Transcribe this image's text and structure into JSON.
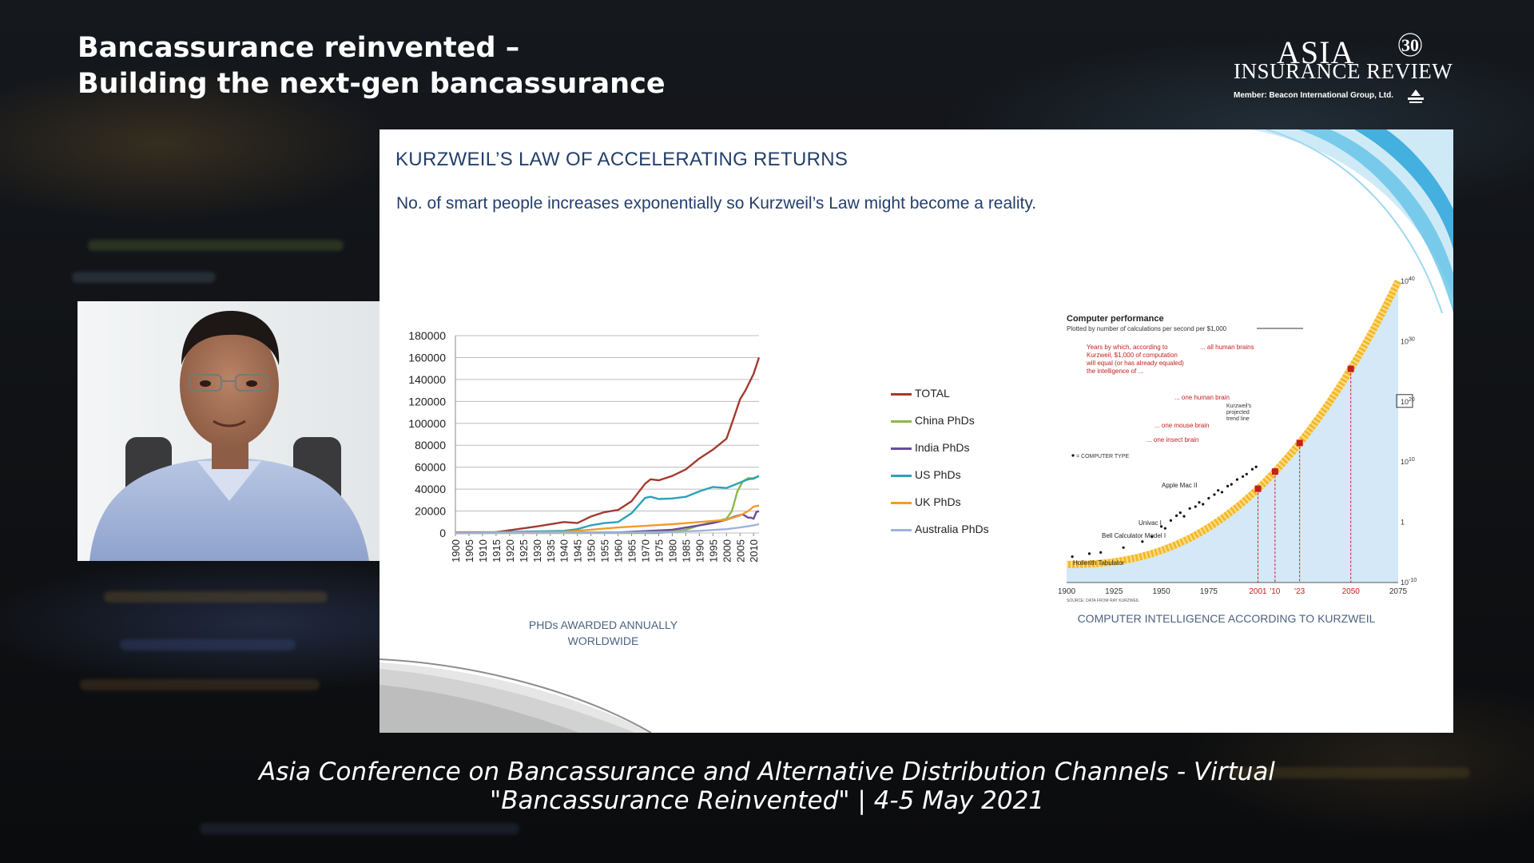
{
  "header": {
    "title_line1": "Bancassurance reinvented –",
    "title_line2": "Building the next-gen bancassurance"
  },
  "logo": {
    "asia": "ASIA",
    "insurance_review": "INSURANCE REVIEW",
    "member": "Member: Beacon International Group, Ltd.",
    "anniversary": "30"
  },
  "slide": {
    "title": "KURZWEIL’S LAW OF ACCELERATING RETURNS",
    "subtitle": "No. of smart people increases exponentially so Kurzweil’s Law might become a reality."
  },
  "footer": {
    "line1": "Asia Conference on Bancassurance and Alternative Distribution Channels - Virtual",
    "line2": "\"Bancassurance Reinvented\"  |  4-5 May 2021"
  },
  "colors": {
    "slide_title": "#233f6b",
    "total": "#a33a2e",
    "china": "#8cb846",
    "india": "#6a4c9c",
    "us": "#2aa3b8",
    "uk": "#f39a2b",
    "australia": "#9fb3d9"
  },
  "chart_data": [
    {
      "type": "line",
      "title": "",
      "caption_line1": "PHDs AWARDED ANNUALLY",
      "caption_line2": "WORLDWIDE",
      "xlabel": "",
      "ylabel": "",
      "xlim": [
        1900,
        2012
      ],
      "ylim": [
        0,
        180000
      ],
      "x_ticks": [
        1900,
        1905,
        1910,
        1915,
        1920,
        1925,
        1930,
        1935,
        1940,
        1945,
        1950,
        1955,
        1960,
        1965,
        1970,
        1975,
        1980,
        1985,
        1990,
        1995,
        2000,
        2005,
        2010
      ],
      "y_ticks": [
        0,
        20000,
        40000,
        60000,
        80000,
        100000,
        120000,
        140000,
        160000,
        180000
      ],
      "y_tick_labels": [
        "0",
        "20000",
        "40000",
        "60000",
        "80000",
        "100000",
        "120000",
        "140000",
        "160000",
        "180000"
      ],
      "grid": true,
      "legend_position": "right",
      "series": [
        {
          "name": "TOTAL",
          "color": "#a33a2e",
          "x": [
            1900,
            1915,
            1920,
            1930,
            1940,
            1945,
            1950,
            1955,
            1960,
            1965,
            1970,
            1972,
            1975,
            1980,
            1985,
            1990,
            1995,
            2000,
            2002,
            2005,
            2007,
            2009,
            2010,
            2012
          ],
          "y": [
            500,
            800,
            2500,
            6000,
            10000,
            9000,
            15000,
            19000,
            21000,
            29000,
            45000,
            49000,
            48000,
            52000,
            58000,
            68000,
            76000,
            86000,
            100000,
            122000,
            130000,
            140000,
            145000,
            160000
          ]
        },
        {
          "name": "China PhDs",
          "color": "#8cb846",
          "x": [
            1900,
            1975,
            1985,
            1990,
            1995,
            2000,
            2002,
            2004,
            2006,
            2008,
            2010,
            2012
          ],
          "y": [
            0,
            0,
            3000,
            7000,
            10000,
            13000,
            20000,
            38000,
            47000,
            50000,
            50000,
            52000
          ]
        },
        {
          "name": "India PhDs",
          "color": "#6a4c9c",
          "x": [
            1900,
            1960,
            1980,
            1990,
            1995,
            2000,
            2003,
            2006,
            2008,
            2009,
            2010,
            2011,
            2012
          ],
          "y": [
            0,
            500,
            3000,
            7000,
            9000,
            12000,
            15000,
            17000,
            14000,
            14000,
            13000,
            19000,
            20000
          ]
        },
        {
          "name": "US PhDs",
          "color": "#2aa3b8",
          "x": [
            1900,
            1940,
            1945,
            1950,
            1955,
            1960,
            1965,
            1970,
            1972,
            1975,
            1980,
            1985,
            1990,
            1995,
            2000,
            2005,
            2008,
            2010,
            2012
          ],
          "y": [
            0,
            2000,
            3500,
            7000,
            9000,
            10000,
            18000,
            32000,
            33000,
            31000,
            31500,
            33000,
            38000,
            42000,
            41000,
            46000,
            49000,
            49500,
            52000
          ]
        },
        {
          "name": "UK PhDs",
          "color": "#f39a2b",
          "x": [
            1900,
            1940,
            1950,
            1960,
            1970,
            1980,
            1990,
            2000,
            2005,
            2008,
            2010,
            2012
          ],
          "y": [
            0,
            1000,
            3000,
            5000,
            6500,
            8000,
            10000,
            12000,
            16000,
            20000,
            24000,
            25000
          ]
        },
        {
          "name": "Australia PhDs",
          "color": "#9fb3d9",
          "x": [
            1900,
            1960,
            1980,
            1990,
            2000,
            2005,
            2010,
            2012
          ],
          "y": [
            0,
            300,
            1000,
            2000,
            3500,
            5000,
            7000,
            8000
          ]
        }
      ]
    },
    {
      "type": "scatter",
      "title": "Computer performance",
      "subtitle": "Plotted by number of calculations per second per $1,000",
      "caption": "COMPUTER INTELLIGENCE ACCORDING TO KURZWEIL",
      "x_ticks": [
        "1900",
        "1925",
        "1950",
        "1975",
        "2001",
        "'10",
        "'23",
        "2050",
        "2075"
      ],
      "y_ticks": [
        "10^-10",
        "1",
        "10^10",
        "10^20",
        "10^30",
        "10^40"
      ],
      "y_scale": "log",
      "annotations": {
        "intro": [
          "Years by which, according to",
          "Kurzweil, $1,000 of computation",
          "will equal (or has already equaled)",
          "the intelligence of ..."
        ],
        "insect": "... one insect brain",
        "mouse": "... one mouse brain",
        "human": "... one human brain",
        "all_human": "... all human brains",
        "projected": [
          "Kurzweil's",
          "projected",
          "trend line"
        ],
        "legend_dot": "= COMPUTER TYPE",
        "source": "SOURCE: DATA FROM RAY KURZWEIL"
      },
      "labels": [
        "Hollerith Tabulator",
        "Bell Calculator Model I",
        "Univac I",
        "Apple Mac II"
      ],
      "milestones": [
        {
          "label": "insect brain",
          "year": 2001
        },
        {
          "label": "mouse brain",
          "year": 2010
        },
        {
          "label": "human brain",
          "year": 2023
        },
        {
          "label": "all human brains",
          "year": 2050
        }
      ]
    }
  ]
}
